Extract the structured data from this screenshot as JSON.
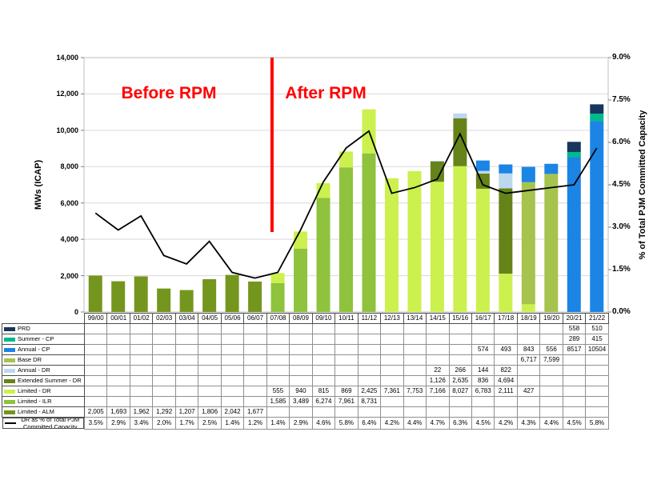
{
  "chart_data": {
    "type": "stacked-bar+line",
    "categories": [
      "99/00",
      "00/01",
      "01/02",
      "02/03",
      "03/04",
      "04/05",
      "05/06",
      "06/07",
      "07/08",
      "08/09",
      "09/10",
      "10/11",
      "11/12",
      "12/13",
      "13/14",
      "14/15",
      "15/16",
      "16/17",
      "17/18",
      "18/19",
      "19/20",
      "20/21",
      "21/22"
    ],
    "left_axis": {
      "label": "MWs (ICAP)",
      "min": 0,
      "max": 14000,
      "step": 2000,
      "ticks": [
        "14,000",
        "12,000",
        "10,000",
        "8,000",
        "6,000",
        "4,000",
        "2,000",
        "0"
      ]
    },
    "right_axis": {
      "label": "% of Total PJM Committed Capacity",
      "min": 0,
      "max": 9,
      "step": 1.5,
      "ticks": [
        "9.0%",
        "7.5%",
        "6.0%",
        "4.5%",
        "3.0%",
        "1.5%",
        "0.0%"
      ]
    },
    "grid": "horizontal lines at left-axis steps",
    "legend_position": "table-left-column",
    "bar_series": [
      {
        "name": "PRD",
        "color": "#17365D",
        "cells": [
          "",
          "",
          "",
          "",
          "",
          "",
          "",
          "",
          "",
          "",
          "",
          "",
          "",
          "",
          "",
          "",
          "",
          "",
          "",
          "",
          "",
          "558",
          "510"
        ]
      },
      {
        "name": "Summer - CP",
        "color": "#00B98C",
        "cells": [
          "",
          "",
          "",
          "",
          "",
          "",
          "",
          "",
          "",
          "",
          "",
          "",
          "",
          "",
          "",
          "",
          "",
          "",
          "",
          "",
          "",
          "289",
          "415"
        ]
      },
      {
        "name": "Annual - CP",
        "color": "#1B84E5",
        "cells": [
          "",
          "",
          "",
          "",
          "",
          "",
          "",
          "",
          "",
          "",
          "",
          "",
          "",
          "",
          "",
          "",
          "",
          "574",
          "493",
          "843",
          "556",
          "8517",
          "10504"
        ]
      },
      {
        "name": "Base DR",
        "color": "#A6C34E",
        "cells": [
          "",
          "",
          "",
          "",
          "",
          "",
          "",
          "",
          "",
          "",
          "",
          "",
          "",
          "",
          "",
          "",
          "",
          "",
          "",
          "6,717",
          "7,599",
          "",
          ""
        ]
      },
      {
        "name": "Annual - DR",
        "color": "#BDD7EE",
        "cells": [
          "",
          "",
          "",
          "",
          "",
          "",
          "",
          "",
          "",
          "",
          "",
          "",
          "",
          "",
          "",
          "22",
          "266",
          "144",
          "822",
          "",
          "",
          "",
          ""
        ]
      },
      {
        "name": "Extended Summer - DR",
        "color": "#66831A",
        "cells": [
          "",
          "",
          "",
          "",
          "",
          "",
          "",
          "",
          "",
          "",
          "",
          "",
          "",
          "",
          "",
          "1,126",
          "2,635",
          "836",
          "4,694",
          "",
          "",
          "",
          ""
        ]
      },
      {
        "name": "Limited - DR",
        "color": "#CCF04E",
        "cells": [
          "",
          "",
          "",
          "",
          "",
          "",
          "",
          "",
          "555",
          "940",
          "815",
          "869",
          "2,425",
          "7,361",
          "7,753",
          "7,166",
          "8,027",
          "6,783",
          "2,111",
          "427",
          "",
          "",
          ""
        ]
      },
      {
        "name": "Limited - ILR",
        "color": "#8FC23D",
        "cells": [
          "",
          "",
          "",
          "",
          "",
          "",
          "",
          "",
          "1,585",
          "3,489",
          "6,274",
          "7,961",
          "8,731",
          "",
          "",
          "",
          "",
          "",
          "",
          "",
          "",
          "",
          ""
        ]
      },
      {
        "name": "Limited - ALM",
        "color": "#75961E",
        "cells": [
          "2,005",
          "1,693",
          "1,962",
          "1,292",
          "1,207",
          "1,806",
          "2,042",
          "1,677",
          "",
          "",
          "",
          "",
          "",
          "",
          "",
          "",
          "",
          "",
          "",
          "",
          "",
          "",
          ""
        ]
      }
    ],
    "line_series": {
      "name": "DR as % of Total PJM Committed Capacity",
      "color": "#000000",
      "cells": [
        "3.5%",
        "2.9%",
        "3.4%",
        "2.0%",
        "1.7%",
        "2.5%",
        "1.4%",
        "1.2%",
        "1.4%",
        "2.9%",
        "4.6%",
        "5.8%",
        "6.4%",
        "4.2%",
        "4.4%",
        "4.7%",
        "6.3%",
        "4.5%",
        "4.2%",
        "4.3%",
        "4.4%",
        "4.5%",
        "5.8%"
      ]
    },
    "annotations": {
      "before_label": "Before RPM",
      "after_label": "After RPM",
      "label_color": "#FF0000",
      "divider_color": "#FF0000",
      "divider_after_category": "06/07"
    }
  }
}
